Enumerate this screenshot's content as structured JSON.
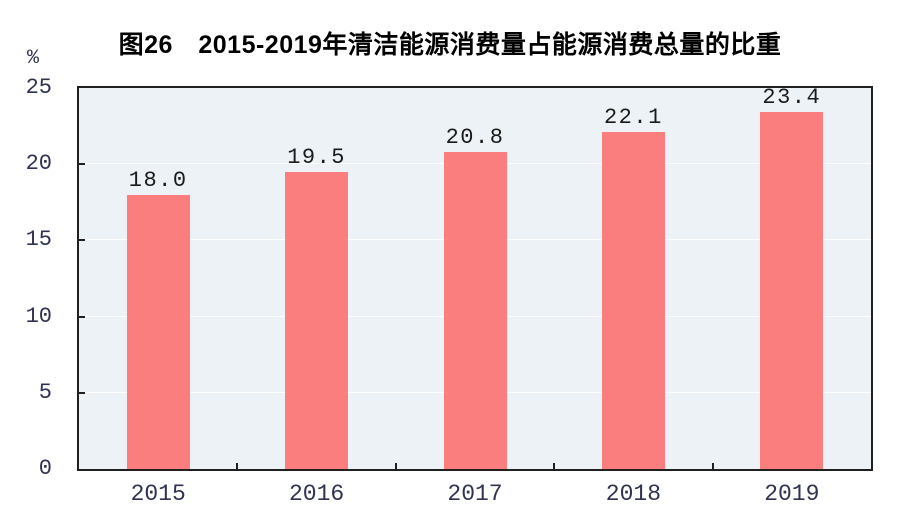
{
  "chart_data": {
    "type": "bar",
    "title": "图26　2015-2019年清洁能源消费量占能源消费总量的比重",
    "categories": [
      "2015",
      "2016",
      "2017",
      "2018",
      "2019"
    ],
    "values": [
      18.0,
      19.5,
      20.8,
      22.1,
      23.4
    ],
    "data_labels": [
      "18.0",
      "19.5",
      "20.8",
      "22.1",
      "23.4"
    ],
    "xlabel": "",
    "ylabel": "%",
    "ylim": [
      0,
      25
    ],
    "yticks": [
      0,
      5,
      10,
      15,
      20,
      25
    ],
    "grid": "horizontal",
    "legend_position": "none",
    "colors": {
      "bar": "#FB7E7E",
      "plot_background": "#EDF2F6",
      "grid_line": "#FFFFFF",
      "axis_frame": "#202020",
      "tick_label": "#2F3350",
      "data_label": "#1A1A1A",
      "title": "#000000",
      "page_background": "#FFFFFF"
    }
  }
}
